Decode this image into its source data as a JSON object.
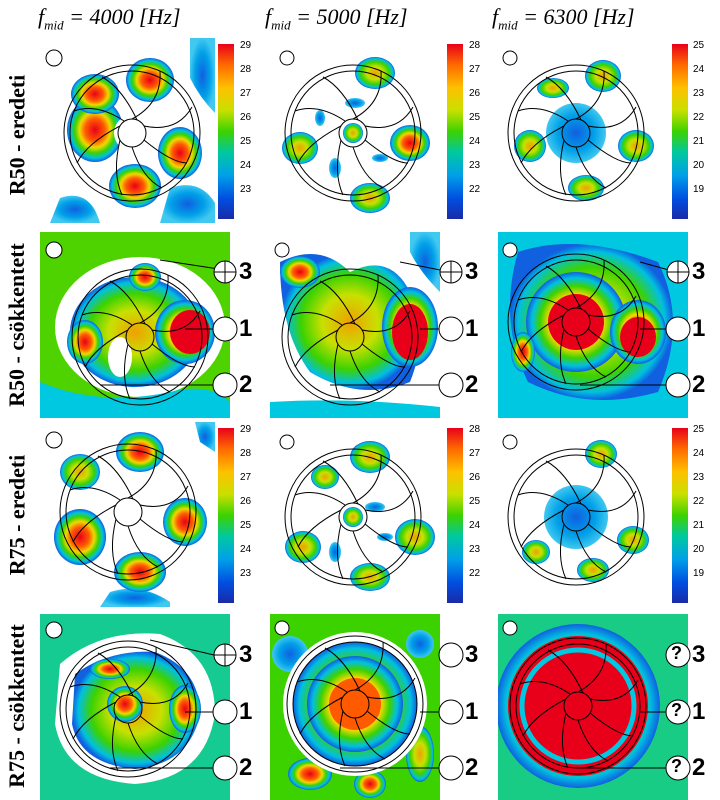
{
  "headers": [
    {
      "main": "f",
      "sub": "mid",
      "rest": " = 4000 [Hz]"
    },
    {
      "main": "f",
      "sub": "mid",
      "rest": " = 5000 [Hz]"
    },
    {
      "main": "f",
      "sub": "mid",
      "rest": " = 6300 [Hz]"
    }
  ],
  "rows": [
    "R50 - eredeti",
    "R50 - csökkentett",
    "R75 - eredeti",
    "R75 - csökkentett"
  ],
  "colorbars": {
    "c4000": [
      "29",
      "28",
      "27",
      "26",
      "25",
      "24",
      "23"
    ],
    "c5000": [
      "28",
      "27",
      "26",
      "25",
      "24",
      "23",
      "22"
    ],
    "c6300": [
      "25",
      "24",
      "23",
      "22",
      "21",
      "20",
      "19"
    ]
  },
  "markers": {
    "m1": "1",
    "m2": "2",
    "m3": "3",
    "q": "?"
  },
  "colors": {
    "red": "#e8001a",
    "orange": "#ff8000",
    "yellow": "#f0e800",
    "green": "#3cd200",
    "cyan": "#00c8e0",
    "blue": "#1060e0",
    "white": "#ffffff"
  }
}
